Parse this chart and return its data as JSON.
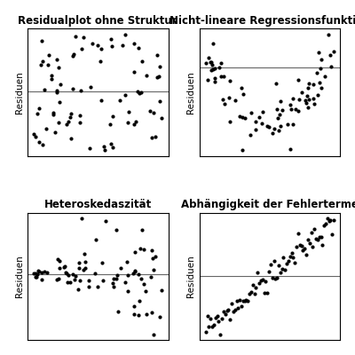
{
  "title1": "Residualplot ohne Struktur",
  "title2": "Nicht-lineare Regressionsfunktion",
  "title3": "Heteroskedaszität",
  "title4": "Abhängigkeit der Fehlerterme",
  "ylabel": "Residuen",
  "background_color": "#ffffff",
  "dot_color": "#000000",
  "dot_size": 9,
  "line_color": "#666666",
  "title_fontsize": 8.5,
  "ylabel_fontsize": 7.5,
  "title_fontweight": "bold"
}
